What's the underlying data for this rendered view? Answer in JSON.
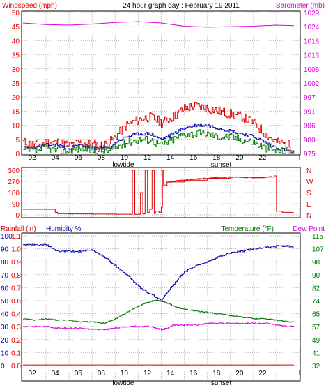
{
  "colors": {
    "windspeed": "#dd0000",
    "windspeed_avg": "#0000aa",
    "windspeed_low": "#007700",
    "barometer": "#dd00dd",
    "direction": "#dd0000",
    "rainfall": "#dd0000",
    "humidity": "#0000aa",
    "temperature": "#007700",
    "dewpoint": "#dd00dd",
    "grid": "#bbbbbb"
  },
  "chart_data": [
    {
      "type": "line",
      "title": "24 hour graph day : February 19 2011",
      "ylabel": "Windspeed (mph)",
      "y2label": "Barometer (mb)",
      "ylim": [
        0,
        50
      ],
      "y2lim": [
        975,
        1029
      ],
      "yticks": [
        "0",
        "5",
        "10",
        "15",
        "20",
        "25",
        "30",
        "35",
        "40",
        "45",
        "50"
      ],
      "y2ticks": [
        "975",
        "980",
        "986",
        "991",
        "997",
        "1002",
        "1008",
        "1013",
        "1018",
        "1024",
        "1029"
      ],
      "xticks": [
        "02",
        "04",
        "06",
        "08",
        "10",
        "12",
        "14",
        "16",
        "18",
        "20",
        "22",
        "l"
      ],
      "xannotations": [
        {
          "label": "lowtide",
          "x": 8.7
        },
        {
          "label": "sunset",
          "x": 17.2
        }
      ],
      "xlim": [
        0,
        24
      ],
      "grid": true,
      "series": [
        {
          "key": "gust",
          "axis": "left",
          "x": [
            0,
            1,
            2,
            3,
            4,
            5,
            6,
            7,
            7.5,
            8,
            9,
            10,
            11,
            12,
            13,
            14,
            15,
            16,
            17,
            18,
            19,
            20,
            21,
            22,
            23,
            23.5
          ],
          "y": [
            4,
            3,
            4,
            4,
            3,
            4,
            3,
            3,
            4,
            6,
            10,
            12,
            13,
            11,
            13,
            16,
            17,
            16,
            15,
            14,
            13,
            11,
            7,
            4,
            3,
            1
          ]
        },
        {
          "key": "avg",
          "axis": "left",
          "x": [
            0,
            1,
            2,
            3,
            4,
            5,
            6,
            7,
            7.5,
            8,
            9,
            10,
            11,
            12,
            13,
            14,
            15,
            16,
            17,
            18,
            19,
            20,
            21,
            22,
            23,
            23.5
          ],
          "y": [
            2,
            2,
            3,
            3,
            2,
            3,
            2,
            2,
            2,
            4,
            6,
            7,
            7,
            5,
            7,
            9,
            10,
            10,
            9,
            8,
            7,
            6,
            4,
            2,
            1,
            0.5
          ]
        },
        {
          "key": "low",
          "axis": "left",
          "x": [
            0,
            1,
            2,
            3,
            4,
            5,
            6,
            7,
            7.5,
            8,
            9,
            10,
            11,
            12,
            13,
            14,
            15,
            16,
            17,
            18,
            19,
            20,
            21,
            22,
            23,
            23.5
          ],
          "y": [
            1,
            1,
            2,
            1,
            1,
            2,
            1,
            1,
            1,
            2,
            4,
            5,
            5,
            3,
            5,
            7,
            7,
            7,
            6,
            6,
            5,
            4,
            2,
            1,
            0.5,
            0
          ]
        },
        {
          "key": "barometer",
          "axis": "right",
          "x": [
            0,
            2,
            4,
            6,
            8,
            10,
            12,
            14,
            16,
            18,
            20,
            22,
            23.5
          ],
          "y": [
            1025,
            1024.4,
            1024.2,
            1024.6,
            1025.2,
            1025.5,
            1025,
            1023.8,
            1023.4,
            1023.6,
            1023.8,
            1024.2,
            1024
          ]
        }
      ]
    },
    {
      "type": "line",
      "ylabel_ticks": [
        "0",
        "90",
        "180",
        "270",
        "360"
      ],
      "y2ticks": [
        "N",
        "W",
        "S",
        "E",
        "N"
      ],
      "ylim": [
        0,
        360
      ],
      "xlim": [
        0,
        24
      ],
      "grid": true,
      "series": [
        {
          "key": "direction",
          "axis": "left",
          "x": [
            0,
            2,
            2.8,
            3,
            4,
            6,
            8,
            9,
            9.4,
            9.5,
            9.6,
            9.7,
            10,
            10.2,
            10.4,
            10.6,
            10.8,
            11,
            11.2,
            11.4,
            11.5,
            11.8,
            12,
            12.1,
            12.2,
            12.5,
            14,
            16,
            18,
            20,
            21,
            21.8,
            22,
            22.5,
            23.5
          ],
          "y": [
            45,
            45,
            20,
            10,
            8,
            6,
            5,
            5,
            5,
            360,
            360,
            5,
            5,
            180,
            8,
            360,
            20,
            45,
            360,
            10,
            30,
            20,
            60,
            360,
            240,
            265,
            280,
            295,
            305,
            300,
            305,
            315,
            30,
            20,
            20
          ]
        }
      ]
    },
    {
      "type": "line",
      "ylabel": "Rainfall (in)",
      "ylabel2": "Humidity %",
      "y2label": "Temperature (°F)",
      "y2label2": "Dew Point",
      "ylim": [
        0,
        100
      ],
      "yticks_humidity": [
        "0",
        "10",
        "20",
        "30",
        "40",
        "50",
        "60",
        "70",
        "80",
        "90",
        "100"
      ],
      "yticks_rain": [
        "0.0",
        "0.1",
        "0.2",
        "0.3",
        "0.4",
        "0.6",
        "0.7",
        "0.8",
        "0.9",
        "1.0",
        "1.1"
      ],
      "y2lim": [
        32,
        115
      ],
      "y2ticks": [
        "32",
        "41",
        "49",
        "57",
        "65",
        "74",
        "82",
        "90",
        "98",
        "107",
        "115"
      ],
      "xticks": [
        "02",
        "04",
        "06",
        "08",
        "10",
        "12",
        "14",
        "16",
        "18",
        "20",
        "22",
        "l"
      ],
      "xannotations": [
        {
          "label": "lowtide",
          "x": 8.7
        },
        {
          "label": "sunset",
          "x": 17.2
        }
      ],
      "xlim": [
        0,
        24
      ],
      "grid": true,
      "series": [
        {
          "key": "humidity",
          "axis": "left",
          "x": [
            0,
            1,
            2,
            3,
            4,
            5,
            6,
            7,
            8,
            9,
            10,
            11,
            11.5,
            12,
            12.5,
            13,
            14,
            15,
            16,
            17,
            18,
            19,
            20,
            21,
            22,
            23,
            23.5
          ],
          "y": [
            93,
            93,
            93,
            88,
            88,
            88,
            89,
            84,
            77,
            70,
            61,
            55,
            53,
            50,
            57,
            62,
            72,
            77,
            80,
            84,
            87,
            88,
            90,
            91,
            92,
            92,
            91
          ]
        },
        {
          "key": "temperature",
          "axis": "right",
          "x": [
            0,
            1,
            2,
            3,
            4,
            5,
            6,
            7,
            8,
            9,
            10,
            11,
            11.5,
            12,
            12.5,
            13,
            14,
            15,
            16,
            17,
            18,
            19,
            20,
            21,
            22,
            23,
            23.5
          ],
          "y": [
            62,
            61,
            62,
            61,
            61,
            60,
            60,
            59,
            62,
            66,
            70,
            73,
            74,
            73,
            72,
            70,
            68,
            67,
            66,
            65,
            64,
            63,
            62,
            62,
            61,
            60,
            60
          ]
        },
        {
          "key": "dewpoint",
          "axis": "right",
          "x": [
            0,
            1,
            2,
            3,
            4,
            5,
            6,
            7,
            8,
            9,
            10,
            11,
            11.5,
            12,
            12.5,
            13,
            14,
            15,
            16,
            17,
            18,
            19,
            20,
            21,
            22,
            23,
            23.5
          ],
          "y": [
            57,
            57,
            57,
            56,
            56,
            56,
            55,
            55,
            56,
            57,
            57,
            57,
            56,
            55,
            56,
            58,
            58,
            58,
            59,
            59,
            59,
            59,
            59,
            59,
            58,
            57,
            57
          ]
        },
        {
          "key": "rainfall",
          "axis": "left",
          "x": [
            0,
            23.5
          ],
          "y": [
            0.5,
            0.5
          ]
        }
      ]
    }
  ]
}
